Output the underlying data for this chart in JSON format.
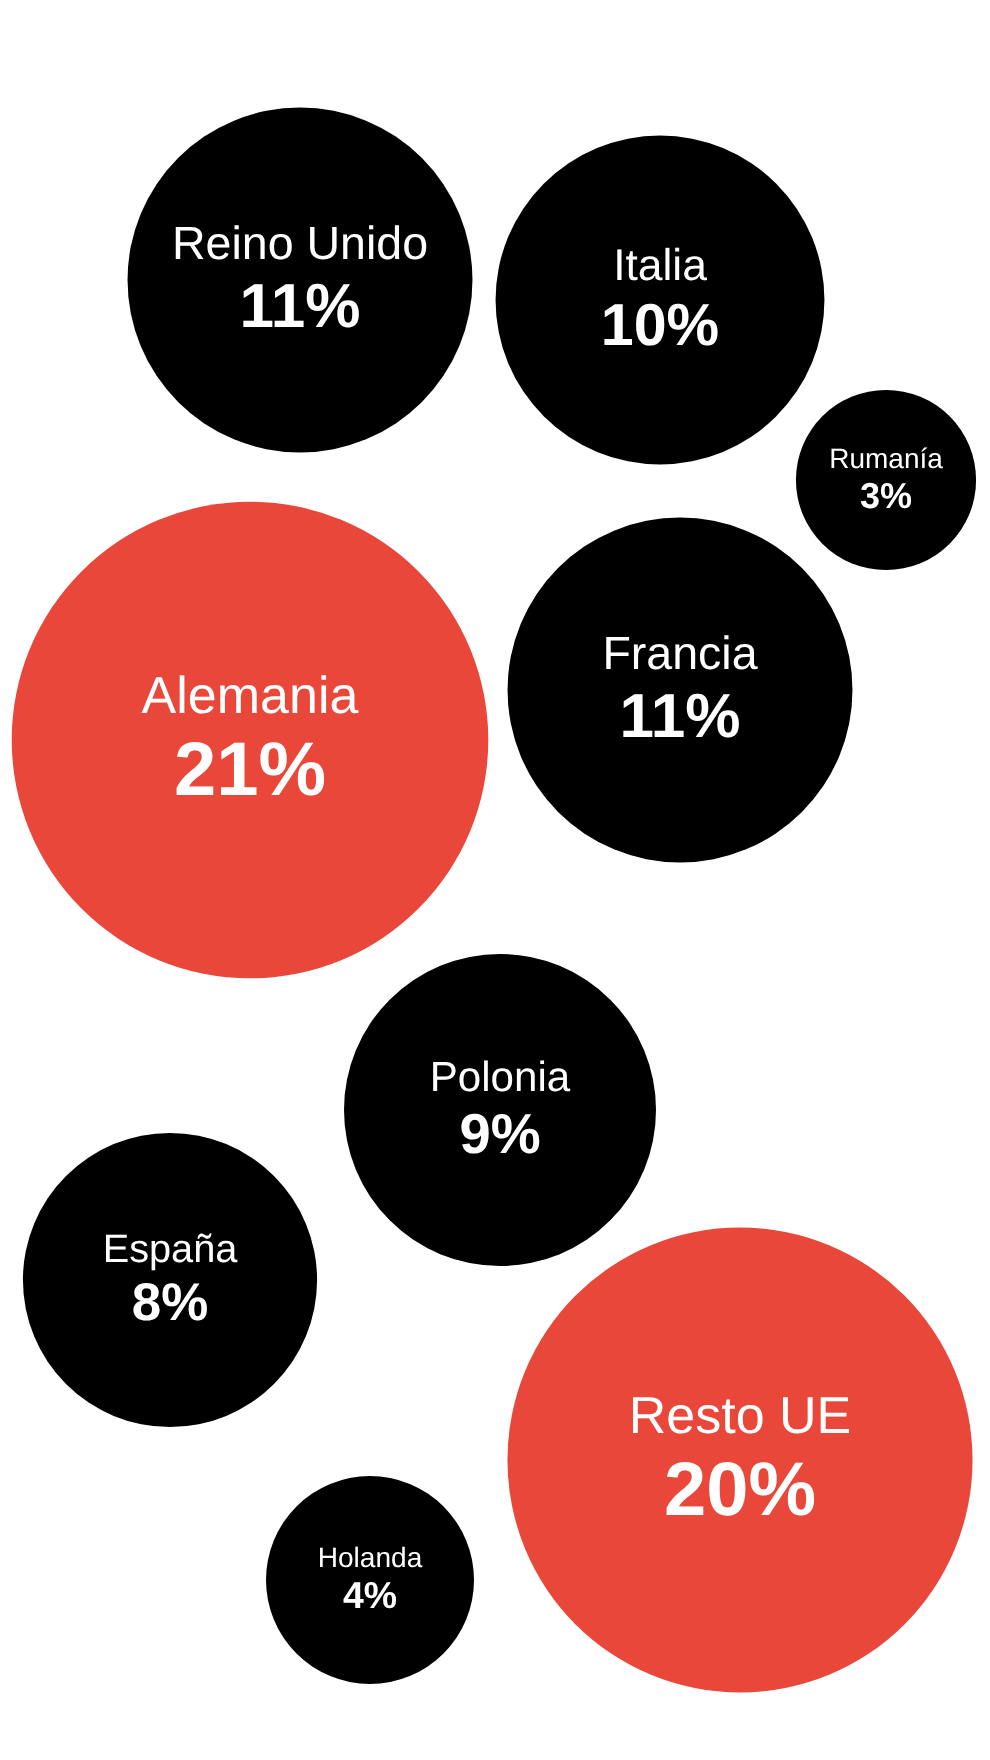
{
  "chart_data": {
    "type": "other",
    "categories": [
      "Reino Unido",
      "Italia",
      "Alemania",
      "Francia",
      "Rumanía",
      "Polonia",
      "España",
      "Resto UE",
      "Holanda"
    ],
    "values": [
      11,
      10,
      21,
      11,
      3,
      9,
      8,
      20,
      4
    ],
    "value_labels": [
      "11%",
      "10%",
      "21%",
      "11%",
      "3%",
      "9%",
      "8%",
      "20%",
      "4%"
    ],
    "colors": [
      "#000000",
      "#000000",
      "#e8473a",
      "#000000",
      "#000000",
      "#000000",
      "#000000",
      "#e8473a",
      "#000000"
    ],
    "legend": false
  }
}
